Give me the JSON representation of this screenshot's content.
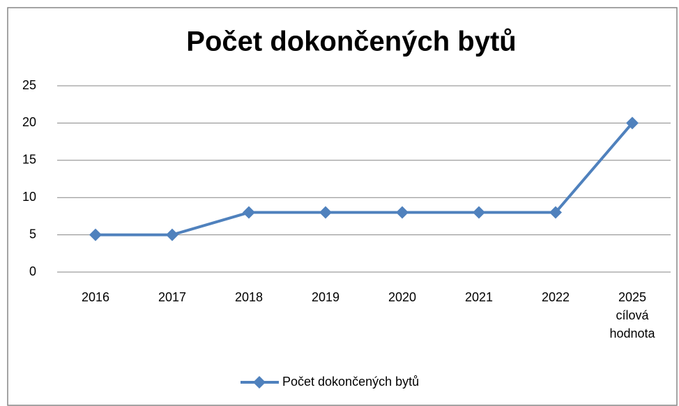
{
  "chart_data": {
    "type": "line",
    "title": "Počet dokončených bytů",
    "categories": [
      "2016",
      "2017",
      "2018",
      "2019",
      "2020",
      "2021",
      "2022",
      "2025 cílová hodnota"
    ],
    "series": [
      {
        "name": "Počet dokončených bytů",
        "color": "#4f81bd",
        "values": [
          5,
          5,
          8,
          8,
          8,
          8,
          8,
          20
        ]
      }
    ],
    "ylim": [
      0,
      25
    ],
    "yticks": [
      0,
      5,
      10,
      15,
      20,
      25
    ],
    "grid": true,
    "legend": "bottom"
  }
}
